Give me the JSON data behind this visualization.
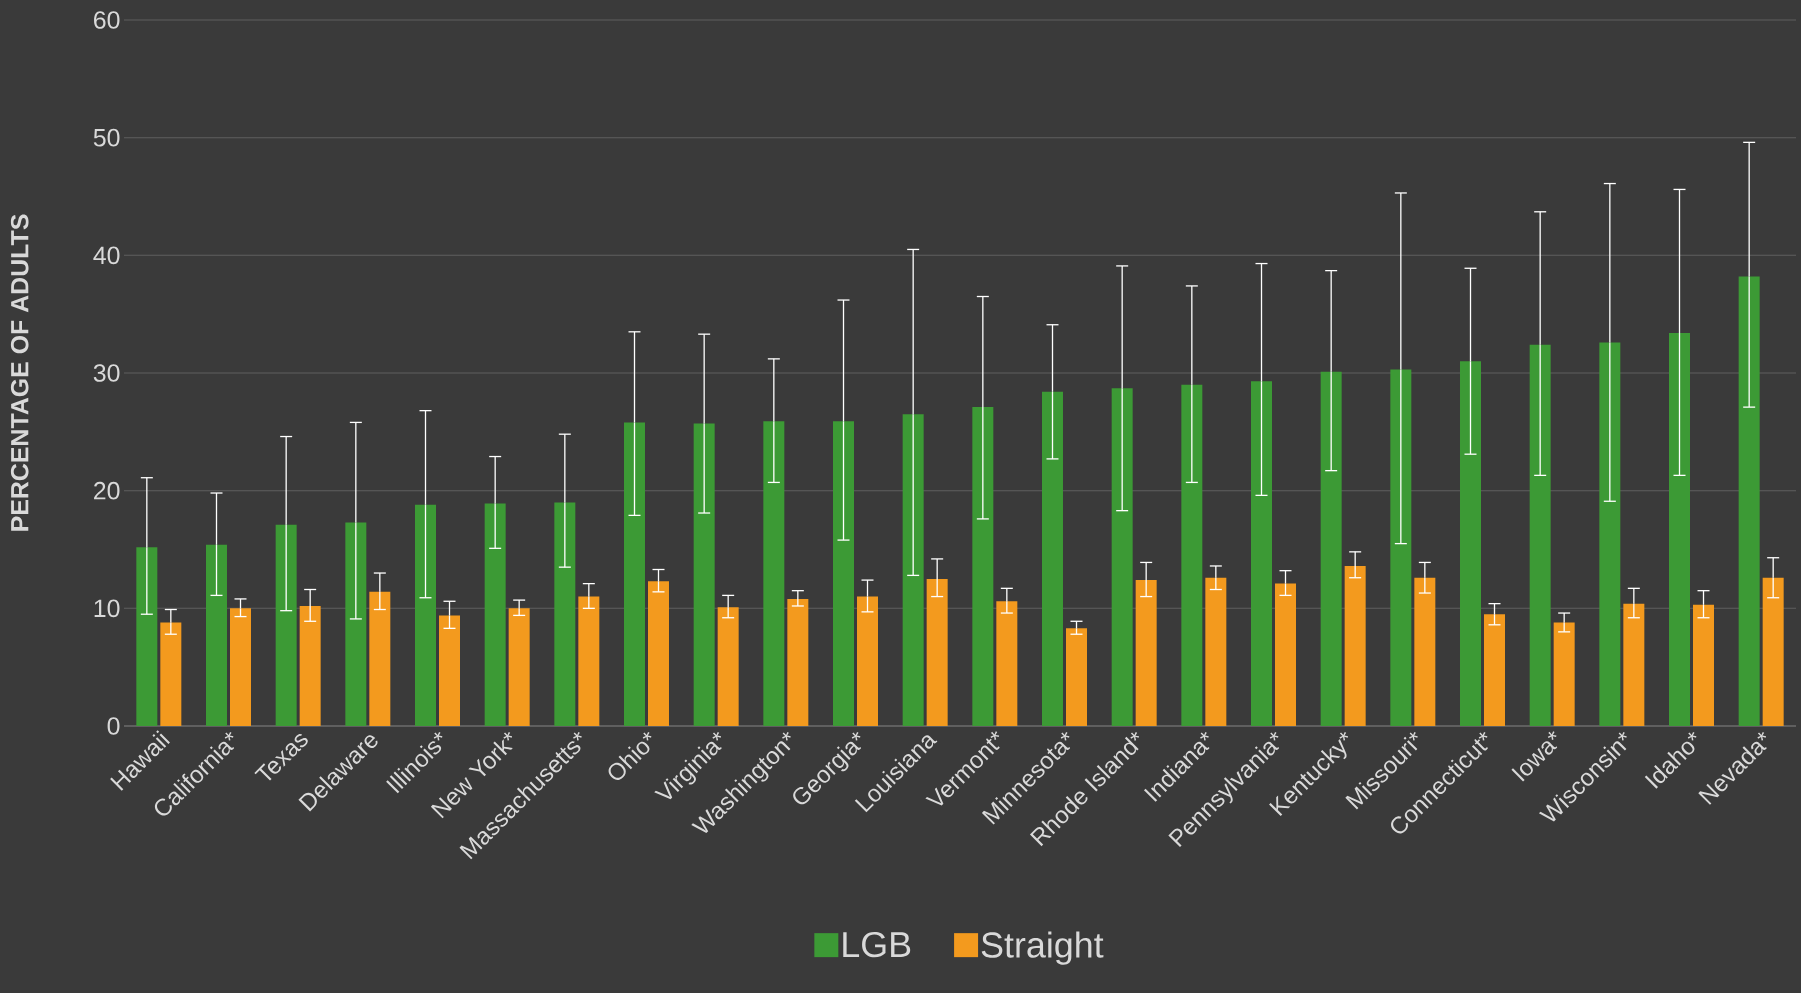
{
  "chart_data": {
    "type": "bar",
    "ylabel": "PERCENTAGE OF ADULTS",
    "categories": [
      "Hawaii",
      "California*",
      "Texas",
      "Delaware",
      "Illinois*",
      "New York*",
      "Massachusetts*",
      "Ohio*",
      "Virginia*",
      "Washington*",
      "Georgia*",
      "Louisiana",
      "Vermont*",
      "Minnesota*",
      "Rhode Island*",
      "Indiana*",
      "Pennsylvania*",
      "Kentucky*",
      "Missouri*",
      "Connecticut*",
      "Iowa*",
      "Wisconsin*",
      "Idaho*",
      "Nevada*"
    ],
    "series": [
      {
        "name": "LGB",
        "color": "#3c9a35",
        "values": [
          15.2,
          15.4,
          17.1,
          17.3,
          18.8,
          18.9,
          19.0,
          25.8,
          25.7,
          25.9,
          25.9,
          26.5,
          27.1,
          28.4,
          28.7,
          29.0,
          29.3,
          30.1,
          30.3,
          31.0,
          32.4,
          32.6,
          33.4,
          38.2
        ],
        "errors": [
          [
            9.5,
            21.1
          ],
          [
            11.1,
            19.8
          ],
          [
            9.8,
            24.6
          ],
          [
            9.1,
            25.8
          ],
          [
            10.9,
            26.8
          ],
          [
            15.1,
            22.9
          ],
          [
            13.5,
            24.8
          ],
          [
            17.9,
            33.5
          ],
          [
            18.1,
            33.3
          ],
          [
            20.7,
            31.2
          ],
          [
            15.8,
            36.2
          ],
          [
            12.8,
            40.5
          ],
          [
            17.6,
            36.5
          ],
          [
            22.7,
            34.1
          ],
          [
            18.3,
            39.1
          ],
          [
            20.7,
            37.4
          ],
          [
            19.6,
            39.3
          ],
          [
            21.7,
            38.7
          ],
          [
            15.5,
            45.3
          ],
          [
            23.1,
            38.9
          ],
          [
            21.3,
            43.7
          ],
          [
            19.1,
            46.1
          ],
          [
            21.3,
            45.6
          ],
          [
            27.1,
            49.6
          ]
        ]
      },
      {
        "name": "Straight",
        "color": "#f39a1e",
        "values": [
          8.8,
          10.0,
          10.2,
          11.4,
          9.4,
          10.0,
          11.0,
          12.3,
          10.1,
          10.8,
          11.0,
          12.5,
          10.6,
          8.3,
          12.4,
          12.6,
          12.1,
          13.6,
          12.6,
          9.5,
          8.8,
          10.4,
          10.3,
          12.6
        ],
        "errors": [
          [
            7.8,
            9.9
          ],
          [
            9.3,
            10.8
          ],
          [
            8.9,
            11.6
          ],
          [
            9.9,
            13.0
          ],
          [
            8.3,
            10.6
          ],
          [
            9.4,
            10.7
          ],
          [
            10.0,
            12.1
          ],
          [
            11.4,
            13.3
          ],
          [
            9.2,
            11.1
          ],
          [
            10.2,
            11.5
          ],
          [
            9.7,
            12.4
          ],
          [
            11.0,
            14.2
          ],
          [
            9.6,
            11.7
          ],
          [
            7.8,
            8.9
          ],
          [
            11.0,
            13.9
          ],
          [
            11.6,
            13.6
          ],
          [
            11.1,
            13.2
          ],
          [
            12.6,
            14.8
          ],
          [
            11.3,
            13.9
          ],
          [
            8.6,
            10.4
          ],
          [
            8.0,
            9.6
          ],
          [
            9.2,
            11.7
          ],
          [
            9.2,
            11.5
          ],
          [
            10.9,
            14.3
          ]
        ]
      }
    ],
    "ylim": [
      0,
      60
    ],
    "yticks": [
      0,
      10,
      20,
      30,
      40,
      50,
      60
    ],
    "grid": "y",
    "legend": "bottom"
  }
}
